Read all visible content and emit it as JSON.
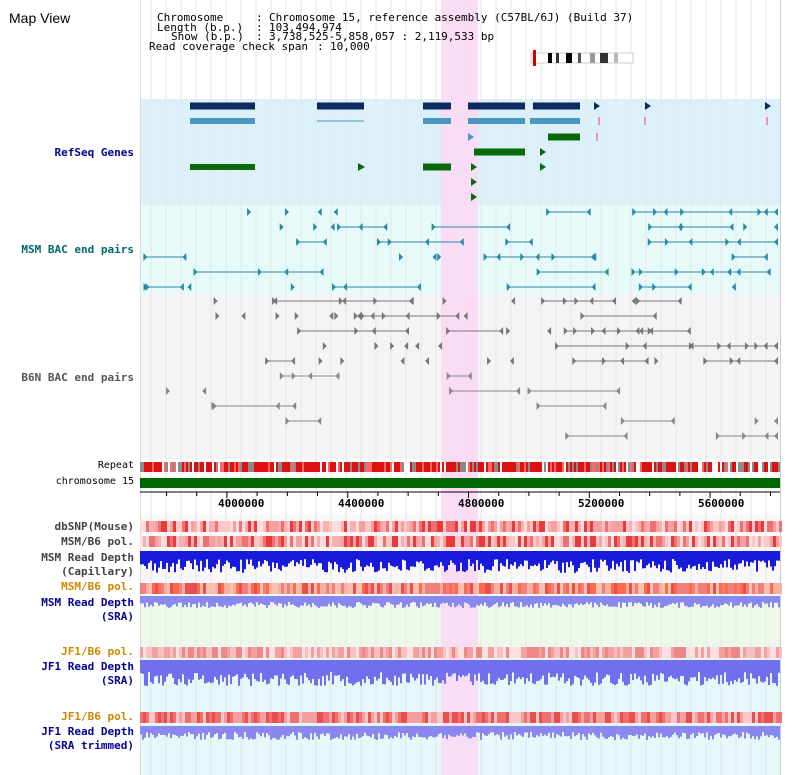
{
  "panel": {
    "title": "Map View"
  },
  "info": {
    "chromosome_key": "Chromosome",
    "chromosome_value": "Chromosome 15, reference assembly (C57BL/6J) (Build 37)",
    "length_key": "Length (b.p.)",
    "length_value": "103,494,974",
    "show_key": "Show (b.p.)",
    "show_value": "3,738,525-5,858,057 : 2,119,533 bp",
    "span_key": "Read coverage check span",
    "span_value": "10,000"
  },
  "tracks": {
    "refseq": "RefSeq Genes",
    "msm_bac": "MSM BAC end pairs",
    "b6n_bac": "B6N BAC end pairs",
    "repeat": "Repeat",
    "chromosome": "chromosome 15",
    "dbsnp": "dbSNP(Mouse)",
    "msm_b6_pol_1": "MSM/B6 pol.",
    "msm_depth_cap_1": "MSM Read Depth",
    "msm_depth_cap_2": "(Capillary)",
    "msm_b6_pol_2": "MSM/B6 pol.",
    "msm_depth_sra_1": "MSM Read Depth",
    "msm_depth_sra_2": "(SRA)",
    "jf1_b6_pol_1": "JF1/B6 pol.",
    "jf1_depth_sra_1": "JF1 Read Depth",
    "jf1_depth_sra_2": "(SRA)",
    "jf1_b6_pol_2": "JF1/B6 pol.",
    "jf1_depth_trim_1": "JF1 Read Depth",
    "jf1_depth_trim_2": "(SRA trimmed)"
  },
  "axis": {
    "ticks": [
      "4000000",
      "4400000",
      "4800000",
      "5200000",
      "5600000"
    ],
    "tick_values": [
      4000000,
      4400000,
      4800000,
      5200000,
      5600000
    ]
  },
  "colors": {
    "label_blue": "#000099",
    "label_orange": "#cc8800",
    "refseq_bg": "#dcf0fa",
    "bac_bg": "#e6fafa",
    "highlight": "#f9d9f4",
    "gene_dark": "#0d2a5e",
    "gene_light": "#4a97c2",
    "gene_green": "#0a6a0a",
    "chromosome_bar": "#006600",
    "depth_blue": "#1a1adc"
  }
}
